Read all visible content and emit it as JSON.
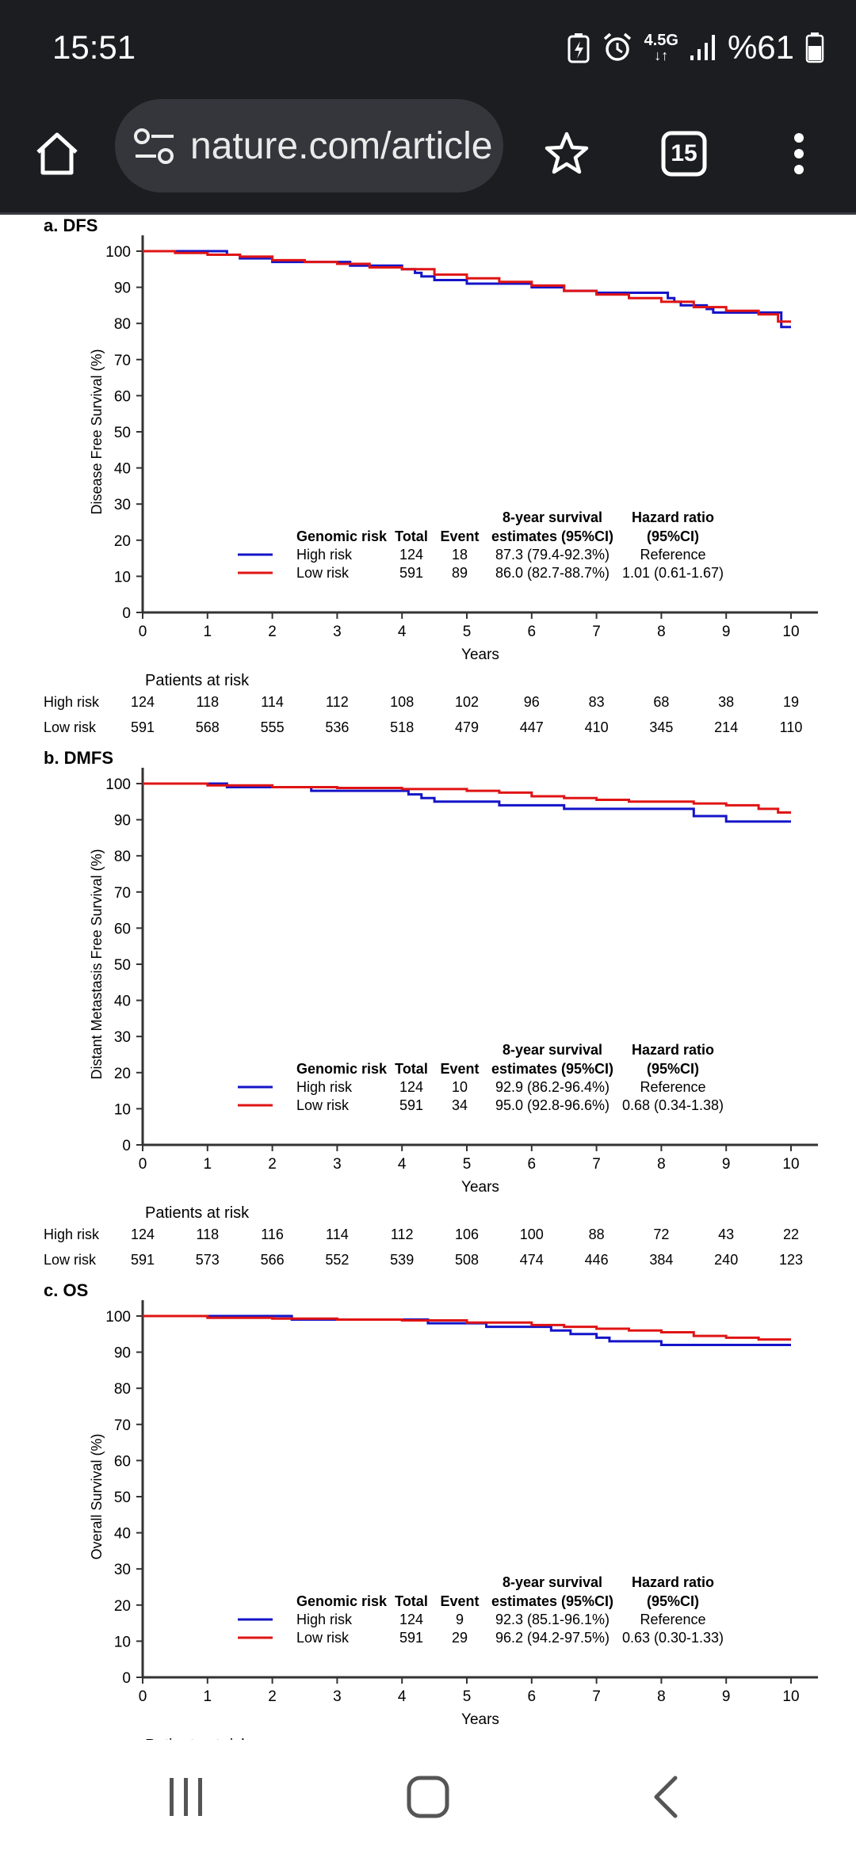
{
  "status_bar": {
    "time": "15:51",
    "network": "4.5G",
    "battery": "%61",
    "icons": [
      "battery-saver-icon",
      "alarm-icon",
      "network-icon",
      "signal-icon",
      "battery-icon"
    ]
  },
  "browser": {
    "url": "nature.com/article",
    "tab_count": "15",
    "icons": [
      "home-icon",
      "site-settings-icon",
      "star-icon",
      "tabs-icon",
      "menu-icon"
    ]
  },
  "nav_bar": {
    "icons": [
      "recent-apps-icon",
      "home-button-icon",
      "back-icon"
    ]
  },
  "figure": {
    "xlabel": "Years",
    "x_ticks": [
      "0",
      "1",
      "2",
      "3",
      "4",
      "5",
      "6",
      "7",
      "8",
      "9",
      "10"
    ],
    "y_ticks": [
      "0",
      "10",
      "20",
      "30",
      "40",
      "50",
      "60",
      "70",
      "80",
      "90",
      "100"
    ],
    "legend_header": {
      "group": "Genomic risk",
      "total": "Total",
      "event": "Event",
      "estimate_1": "8-year survival",
      "estimate_2": "estimates (95%CI)",
      "hr_1": "Hazard ratio",
      "hr_2": "(95%CI)"
    },
    "colors": {
      "high": "#1414c8",
      "low": "#e01414"
    },
    "risk_header": "Patients at risk",
    "risk_partial": "Patients at risk"
  },
  "chart_data": [
    {
      "type": "line",
      "title": "a. DFS",
      "ylabel": "Disease Free Survival (%)",
      "xlabel": "Years",
      "xlim": [
        0,
        10
      ],
      "ylim": [
        0,
        100
      ],
      "series": [
        {
          "name": "High risk",
          "x": [
            0,
            1,
            1.2,
            1.3,
            1.5,
            1.7,
            2,
            2.5,
            3,
            3.2,
            3.5,
            3.8,
            4,
            4.1,
            4.2,
            4.3,
            4.5,
            4.8,
            5,
            5.5,
            6,
            6.2,
            6.5,
            6.8,
            7,
            7.5,
            8,
            8.1,
            8.2,
            8.3,
            8.5,
            8.7,
            8.8,
            9,
            9.5,
            9.8,
            9.85,
            10
          ],
          "y": [
            100,
            100,
            100,
            99,
            98,
            98,
            97,
            97,
            97,
            96,
            96,
            96,
            95,
            95,
            94,
            93,
            92,
            92,
            91,
            91,
            90,
            90,
            89,
            89,
            88.5,
            88.5,
            88.5,
            87,
            86,
            85,
            85,
            84,
            83,
            83,
            83,
            83,
            79,
            79
          ]
        },
        {
          "name": "Low risk",
          "x": [
            0,
            0.5,
            1,
            1.5,
            2,
            2.5,
            3,
            3.5,
            4,
            4.5,
            5,
            5.5,
            6,
            6.5,
            7,
            7.5,
            8,
            8.5,
            9,
            9.5,
            9.8,
            10
          ],
          "y": [
            100,
            99.5,
            99,
            98.5,
            97.5,
            97,
            96.5,
            95.5,
            95,
            93.5,
            92.5,
            91.5,
            90.5,
            89,
            88,
            87,
            86,
            84.5,
            83.5,
            82.5,
            80.5,
            80.5
          ]
        }
      ],
      "legend": [
        {
          "label": "High risk",
          "total": "124",
          "event": "18",
          "estimate": "87.3 (79.4-92.3%)",
          "hr": "Reference"
        },
        {
          "label": "Low risk",
          "total": "591",
          "event": "89",
          "estimate": "86.0 (82.7-88.7%)",
          "hr": "1.01 (0.61-1.67)"
        }
      ],
      "at_risk": {
        "high_label": "High risk",
        "low_label": "Low risk",
        "high": [
          "124",
          "118",
          "114",
          "112",
          "108",
          "102",
          "96",
          "83",
          "68",
          "38",
          "19"
        ],
        "low": [
          "591",
          "568",
          "555",
          "536",
          "518",
          "479",
          "447",
          "410",
          "345",
          "214",
          "110"
        ]
      }
    },
    {
      "type": "line",
      "title": "b. DMFS",
      "ylabel": "Distant Metastasis Free Survival (%)",
      "xlabel": "Years",
      "xlim": [
        0,
        10
      ],
      "ylim": [
        0,
        100
      ],
      "series": [
        {
          "name": "High risk",
          "x": [
            0,
            1,
            1.3,
            2,
            2.5,
            2.6,
            3,
            3.5,
            4,
            4.1,
            4.2,
            4.3,
            4.5,
            4.8,
            5,
            5.5,
            6,
            6.5,
            7,
            7.5,
            8,
            8.2,
            8.5,
            8.6,
            9,
            9.5,
            10
          ],
          "y": [
            100,
            100,
            99,
            99,
            99,
            98,
            98,
            98,
            98,
            97,
            97,
            96,
            95,
            95,
            95,
            94,
            94,
            93,
            93,
            93,
            93,
            93,
            91,
            91,
            89.5,
            89.5,
            89.5
          ]
        },
        {
          "name": "Low risk",
          "x": [
            0,
            1,
            2,
            3,
            4,
            5,
            5.5,
            6,
            6.5,
            7,
            7.5,
            8,
            8.5,
            9,
            9.5,
            9.8,
            10
          ],
          "y": [
            100,
            99.5,
            99,
            98.8,
            98.5,
            98,
            97.5,
            96.5,
            96,
            95.5,
            95,
            95,
            94.5,
            94,
            93,
            92,
            92
          ]
        }
      ],
      "legend": [
        {
          "label": "High risk",
          "total": "124",
          "event": "10",
          "estimate": "92.9 (86.2-96.4%)",
          "hr": "Reference"
        },
        {
          "label": "Low risk",
          "total": "591",
          "event": "34",
          "estimate": "95.0 (92.8-96.6%)",
          "hr": "0.68 (0.34-1.38)"
        }
      ],
      "at_risk": {
        "high_label": "High risk",
        "low_label": "Low risk",
        "high": [
          "124",
          "118",
          "116",
          "114",
          "112",
          "106",
          "100",
          "88",
          "72",
          "43",
          "22"
        ],
        "low": [
          "591",
          "573",
          "566",
          "552",
          "539",
          "508",
          "474",
          "446",
          "384",
          "240",
          "123"
        ]
      }
    },
    {
      "type": "line",
      "title": "c. OS",
      "ylabel": "Overall Survival (%)",
      "xlabel": "Years",
      "xlim": [
        0,
        10
      ],
      "ylim": [
        0,
        100
      ],
      "series": [
        {
          "name": "High risk",
          "x": [
            0,
            1,
            2,
            2.3,
            3,
            4,
            4.4,
            5,
            5.3,
            6,
            6.3,
            6.6,
            7,
            7.2,
            7.5,
            8,
            8.5,
            9,
            10
          ],
          "y": [
            100,
            100,
            100,
            99,
            99,
            99,
            98,
            98,
            97,
            97,
            96,
            95,
            94,
            93,
            93,
            92,
            92,
            92,
            92
          ]
        },
        {
          "name": "Low risk",
          "x": [
            0,
            1,
            2,
            3,
            4,
            5,
            6,
            6.5,
            7,
            7.5,
            8,
            8.5,
            9,
            9.5,
            10
          ],
          "y": [
            100,
            99.5,
            99.3,
            99,
            98.8,
            98.2,
            97.5,
            97,
            96.5,
            96,
            95.5,
            94.5,
            94,
            93.5,
            93.5
          ]
        }
      ],
      "legend": [
        {
          "label": "High risk",
          "total": "124",
          "event": "9",
          "estimate": "92.3 (85.1-96.1%)",
          "hr": "Reference"
        },
        {
          "label": "Low risk",
          "total": "591",
          "event": "29",
          "estimate": "96.2 (94.2-97.5%)",
          "hr": "0.63 (0.30-1.33)"
        }
      ]
    }
  ]
}
